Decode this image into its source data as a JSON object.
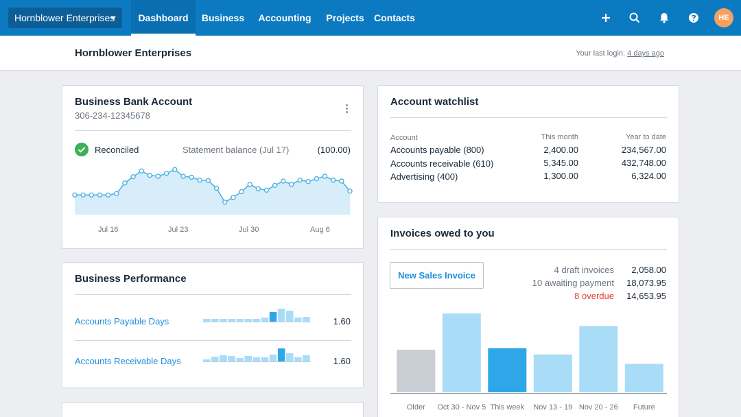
{
  "topnav": {
    "org_switcher": "Hornblower Enterprises",
    "items": [
      {
        "label": "Dashboard",
        "active": true
      },
      {
        "label": "Business"
      },
      {
        "label": "Accounting"
      },
      {
        "label": "Projects"
      },
      {
        "label": "Contacts"
      }
    ],
    "icons": [
      "add-icon",
      "search-icon",
      "bell-icon",
      "help-icon"
    ],
    "avatar_initials": "HE",
    "brand_color": "#0b7ac1"
  },
  "subheader": {
    "title": "Hornblower Enterprises",
    "last_login_prefix": "Your last login:",
    "last_login_link": "4 days ago"
  },
  "bank_account": {
    "title": "Business Bank Account",
    "account_number": "306-234-12345678",
    "status": "Reconciled",
    "statement_label": "Statement balance (Jul 17)",
    "statement_value": "(100.00)",
    "chart_data": {
      "type": "area",
      "x_ticks": [
        "Jul 16",
        "Jul 23",
        "Jul 30",
        "Aug 6"
      ],
      "values": [
        0.41,
        0.41,
        0.41,
        0.41,
        0.41,
        0.44,
        0.66,
        0.79,
        0.91,
        0.82,
        0.8,
        0.86,
        0.94,
        0.8,
        0.78,
        0.72,
        0.71,
        0.55,
        0.26,
        0.36,
        0.48,
        0.63,
        0.54,
        0.51,
        0.61,
        0.7,
        0.63,
        0.72,
        0.69,
        0.75,
        0.8,
        0.72,
        0.7,
        0.49
      ]
    }
  },
  "watchlist": {
    "title": "Account watchlist",
    "headers": {
      "account": "Account",
      "this_month": "This month",
      "ytd": "Year to date"
    },
    "rows": [
      {
        "account": "Accounts payable (800)",
        "this_month": "2,400.00",
        "ytd": "234,567.00"
      },
      {
        "account": "Accounts receivable (610)",
        "this_month": "5,345.00",
        "ytd": "432,748.00"
      },
      {
        "account": "Advertising (400)",
        "this_month": "1,300.00",
        "ytd": "6,324.00"
      }
    ]
  },
  "performance": {
    "title": "Business Performance",
    "metrics": [
      {
        "label": "Accounts Payable Days",
        "value": "1.60",
        "spark": [
          0.2,
          0.2,
          0.2,
          0.2,
          0.2,
          0.2,
          0.2,
          0.3,
          0.7,
          0.95,
          0.8,
          0.3,
          0.35
        ],
        "highlight": 8
      },
      {
        "label": "Accounts Receivable Days",
        "value": "1.60",
        "spark": [
          0.15,
          0.35,
          0.45,
          0.4,
          0.25,
          0.4,
          0.3,
          0.3,
          0.5,
          0.95,
          0.6,
          0.3,
          0.45
        ],
        "highlight": 9
      }
    ]
  },
  "invoices": {
    "title": "Invoices owed to you",
    "new_button": "New Sales Invoice",
    "summary": [
      {
        "label": "4 draft invoices",
        "amount": "2,058.00"
      },
      {
        "label": "10 awaiting payment",
        "amount": "18,073.95"
      },
      {
        "label": "8 overdue",
        "amount": "14,653.95",
        "status": "overdue"
      }
    ],
    "chart_data": {
      "type": "bar",
      "categories": [
        "Older",
        "Oct 30 - Nov 5",
        "This week",
        "Nov 13 - 19",
        "Nov 20 - 26",
        "Future"
      ],
      "values": [
        0.54,
        1.0,
        0.56,
        0.48,
        0.84,
        0.36
      ],
      "colors": [
        "#c9cfd5",
        "#a9dcf7",
        "#2fa6e8",
        "#a9dcf7",
        "#a9dcf7",
        "#a9dcf7"
      ]
    }
  }
}
